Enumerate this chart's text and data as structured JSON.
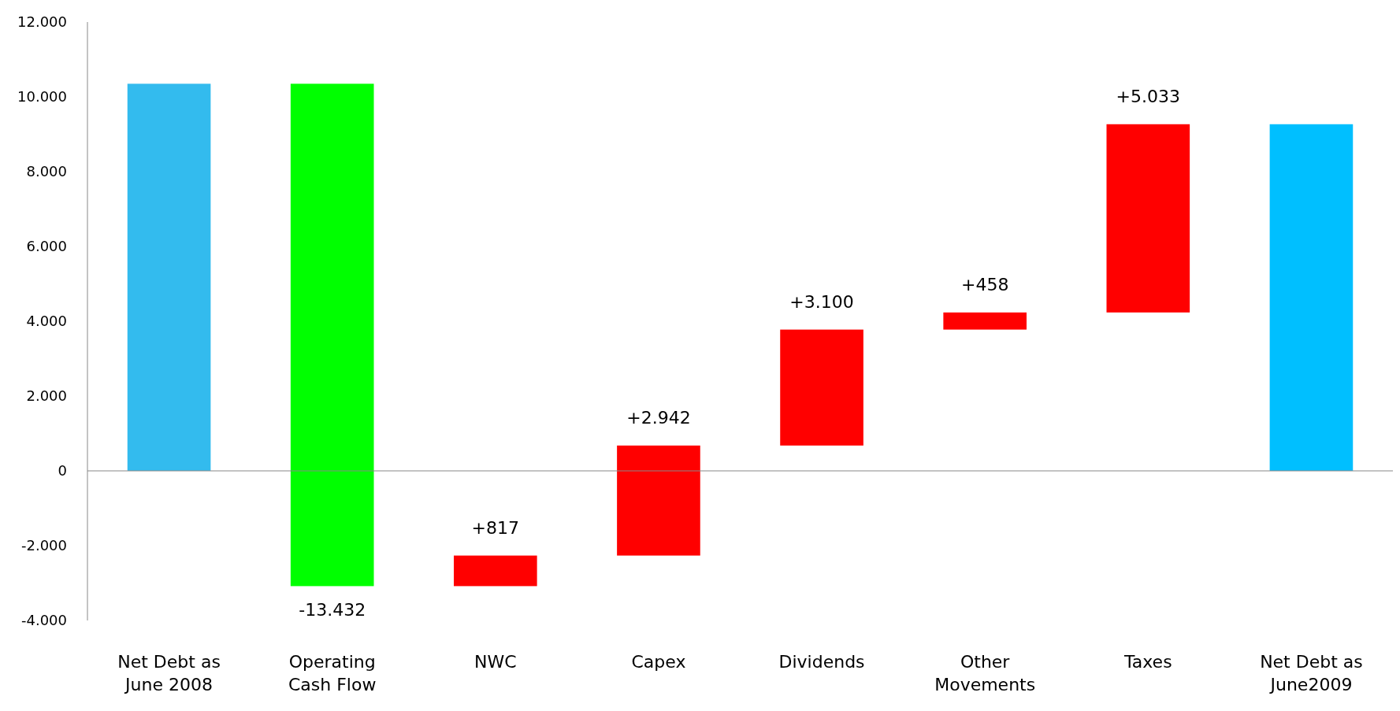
{
  "chart_data": {
    "type": "bar",
    "categories": [
      "Net Debt as June 2008",
      "Operating Cash Flow",
      "NWC",
      "Capex",
      "Dividends",
      "Other Movements",
      "Taxes",
      "Net Debt as June2009"
    ],
    "values": [
      10350,
      -13432,
      817,
      2942,
      3100,
      458,
      5033,
      9268
    ],
    "base": [
      0,
      10350,
      -3082,
      -2265,
      677,
      3777,
      4235,
      0
    ],
    "colors": [
      "#33bbee",
      "#00ff00",
      "#ff0000",
      "#ff0000",
      "#ff0000",
      "#ff0000",
      "#ff0000",
      "#00bfff"
    ],
    "value_labels": [
      null,
      "-13.432",
      "+817",
      "+2.942",
      "+3.100",
      "+458",
      "+5.033",
      null
    ],
    "ylim": [
      -4000,
      12000
    ],
    "yticks": [
      {
        "value": -4000,
        "label": "-4.000"
      },
      {
        "value": -2000,
        "label": "-2.000"
      },
      0,
      {
        "value": 2000,
        "label": "2.000"
      },
      {
        "value": 4000,
        "label": "4.000"
      },
      {
        "value": 6000,
        "label": "6.000"
      },
      {
        "value": 8000,
        "label": "8.000"
      },
      {
        "value": 10000,
        "label": "10.000"
      },
      {
        "value": 12000,
        "label": "12.000"
      }
    ]
  }
}
